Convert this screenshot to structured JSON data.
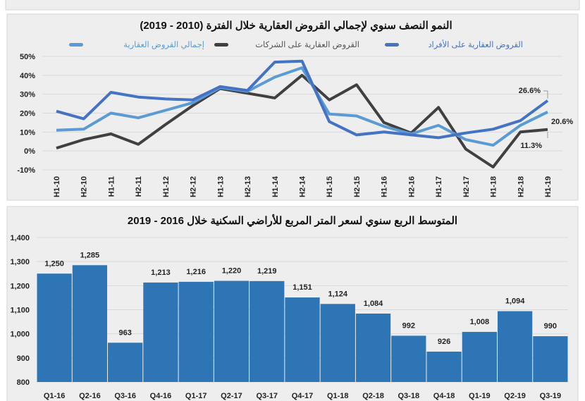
{
  "chart_data": [
    {
      "type": "line",
      "title": "النمو النصف سنوي لإجمالي القروض العقارية خلال الفترة (2010 - 2019)",
      "categories": [
        "H1-10",
        "H2-10",
        "H1-11",
        "H2-11",
        "H1-12",
        "H2-12",
        "H1-13",
        "H2-13",
        "H1-14",
        "H2-14",
        "H1-15",
        "H2-15",
        "H1-16",
        "H2-16",
        "H1-17",
        "H2-17",
        "H1-18",
        "H2-18",
        "H1-19"
      ],
      "ylim": [
        -10,
        50
      ],
      "yticks": [
        -10,
        0,
        10,
        20,
        30,
        40,
        50
      ],
      "ytick_labels": [
        "-10%",
        "0%",
        "10%",
        "20%",
        "30%",
        "40%",
        "50%"
      ],
      "legend_position": "top",
      "grid": true,
      "series": [
        {
          "name": "القروض العقارية على الأفراد",
          "color": "#4472c4",
          "values": [
            21,
            17,
            31,
            28.5,
            27.5,
            27,
            34,
            32,
            47,
            47.5,
            15.5,
            8.5,
            10,
            8.5,
            7,
            9.5,
            11.5,
            16,
            26.6
          ],
          "end_label": "26.6%"
        },
        {
          "name": "القروض العقارية على الشركات",
          "color": "#404040",
          "values": [
            1.5,
            6,
            9,
            3.5,
            14,
            24,
            33,
            30.5,
            28,
            40,
            27,
            35,
            15,
            9.5,
            23,
            1,
            -8.5,
            10,
            11.3
          ],
          "end_label": "11.3%"
        },
        {
          "name": "إجمالي القروض العقارية",
          "color": "#5b9bd5",
          "values": [
            11,
            11.5,
            20,
            17.5,
            21.5,
            25.5,
            33.5,
            31.5,
            39,
            44,
            19.5,
            18.5,
            13,
            9,
            13.5,
            6,
            3,
            13.5,
            20.6
          ],
          "end_label": "20.6%"
        }
      ]
    },
    {
      "type": "bar",
      "title": "المتوسط الربع سنوي لسعر المتر المربع للأراضي السكنية خلال 2016 - 2019",
      "categories": [
        "Q1-16",
        "Q2-16",
        "Q3-16",
        "Q4-16",
        "Q1-17",
        "Q2-17",
        "Q3-17",
        "Q4-17",
        "Q1-18",
        "Q2-18",
        "Q3-18",
        "Q4-18",
        "Q1-19",
        "Q2-19",
        "Q3-19"
      ],
      "values": [
        1250,
        1285,
        963,
        1213,
        1216,
        1220,
        1219,
        1151,
        1124,
        1084,
        992,
        926,
        1008,
        1094,
        990
      ],
      "value_labels": [
        "1,250",
        "1,285",
        "963",
        "1,213",
        "1,216",
        "1,220",
        "1,219",
        "1,151",
        "1,124",
        "1,084",
        "992",
        "926",
        "1,008",
        "1,094",
        "990"
      ],
      "ylim": [
        800,
        1400
      ],
      "yticks": [
        800,
        900,
        1000,
        1100,
        1200,
        1300,
        1400
      ],
      "ytick_labels": [
        "800",
        "900",
        "1,000",
        "1,100",
        "1,200",
        "1,300",
        "1,400"
      ],
      "bar_color": "#2e75b6",
      "grid": true
    }
  ]
}
